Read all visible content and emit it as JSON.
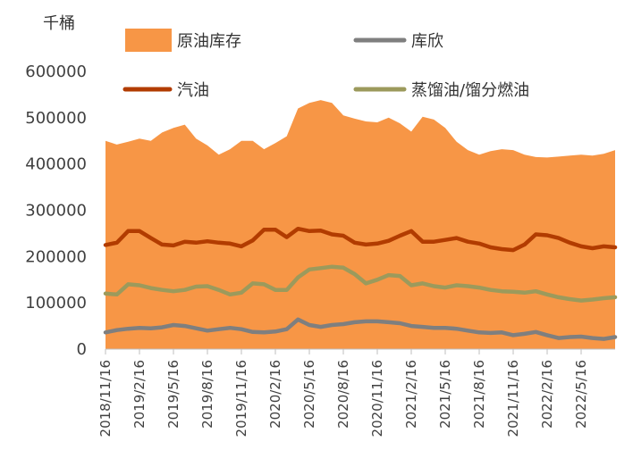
{
  "chart_data": {
    "type": "area",
    "unit_label": "千桶",
    "ylim": [
      0,
      600000
    ],
    "yticks": [
      0,
      100000,
      200000,
      300000,
      400000,
      500000,
      600000
    ],
    "ytick_labels": [
      "0",
      "100000",
      "200000",
      "300000",
      "400000",
      "500000",
      "600000"
    ],
    "xtick_labels": [
      "2018/11/16",
      "2019/2/16",
      "2019/5/16",
      "2019/8/16",
      "2019/11/16",
      "2020/2/16",
      "2020/5/16",
      "2020/8/16",
      "2020/11/16",
      "2021/2/16",
      "2021/5/16",
      "2021/8/16",
      "2021/11/16",
      "2022/2/16",
      "2022/5/16"
    ],
    "x": [
      "2018/11/16",
      "2018/12/16",
      "2019/1/16",
      "2019/2/16",
      "2019/3/16",
      "2019/4/16",
      "2019/5/16",
      "2019/6/16",
      "2019/7/16",
      "2019/8/16",
      "2019/9/16",
      "2019/10/16",
      "2019/11/16",
      "2019/12/16",
      "2020/1/16",
      "2020/2/16",
      "2020/3/16",
      "2020/4/16",
      "2020/5/16",
      "2020/6/16",
      "2020/7/16",
      "2020/8/16",
      "2020/9/16",
      "2020/10/16",
      "2020/11/16",
      "2020/12/16",
      "2021/1/16",
      "2021/2/16",
      "2021/3/16",
      "2021/4/16",
      "2021/5/16",
      "2021/6/16",
      "2021/7/16",
      "2021/8/16",
      "2021/9/16",
      "2021/10/16",
      "2021/11/16",
      "2021/12/16",
      "2022/1/16",
      "2022/2/16",
      "2022/3/16",
      "2022/4/16",
      "2022/5/16",
      "2022/6/16",
      "2022/7/16",
      "2022/8/16"
    ],
    "series": [
      {
        "name": "原油库存",
        "kind": "area",
        "color": "#F79646",
        "values": [
          450000,
          442000,
          448000,
          455000,
          450000,
          468000,
          478000,
          485000,
          455000,
          440000,
          420000,
          432000,
          450000,
          450000,
          432000,
          445000,
          460000,
          520000,
          532000,
          538000,
          532000,
          505000,
          498000,
          492000,
          490000,
          500000,
          488000,
          470000,
          502000,
          496000,
          478000,
          448000,
          430000,
          420000,
          428000,
          432000,
          430000,
          420000,
          415000,
          414000,
          416000,
          418000,
          420000,
          418000,
          422000,
          430000
        ]
      },
      {
        "name": "库欣",
        "kind": "line",
        "color": "#7F7F7F",
        "values": [
          36000,
          41000,
          44000,
          46000,
          45000,
          47000,
          52000,
          50000,
          45000,
          40000,
          43000,
          46000,
          43000,
          37000,
          36000,
          38000,
          43000,
          64000,
          52000,
          48000,
          52000,
          54000,
          58000,
          60000,
          60000,
          58000,
          56000,
          50000,
          48000,
          46000,
          46000,
          44000,
          40000,
          36000,
          35000,
          36000,
          30000,
          33000,
          37000,
          30000,
          24000,
          26000,
          27000,
          24000,
          22000,
          26000
        ]
      },
      {
        "name": "汽油",
        "kind": "line",
        "color": "#B23C00",
        "values": [
          225000,
          230000,
          255000,
          255000,
          240000,
          226000,
          224000,
          232000,
          230000,
          233000,
          230000,
          228000,
          222000,
          235000,
          258000,
          258000,
          242000,
          260000,
          255000,
          256000,
          248000,
          245000,
          230000,
          226000,
          228000,
          234000,
          245000,
          255000,
          232000,
          232000,
          236000,
          240000,
          232000,
          228000,
          220000,
          216000,
          214000,
          226000,
          248000,
          246000,
          240000,
          230000,
          222000,
          218000,
          222000,
          220000
        ]
      },
      {
        "name": "蒸馏油/馏分燃油",
        "kind": "line",
        "color": "#9C9A5C",
        "values": [
          120000,
          118000,
          140000,
          138000,
          132000,
          128000,
          125000,
          128000,
          135000,
          136000,
          128000,
          118000,
          122000,
          142000,
          140000,
          128000,
          128000,
          155000,
          172000,
          175000,
          178000,
          176000,
          162000,
          142000,
          150000,
          160000,
          158000,
          138000,
          142000,
          136000,
          133000,
          138000,
          136000,
          133000,
          128000,
          125000,
          124000,
          122000,
          125000,
          118000,
          112000,
          108000,
          105000,
          107000,
          110000,
          112000
        ]
      }
    ],
    "legend_position": "top",
    "grid": false
  }
}
